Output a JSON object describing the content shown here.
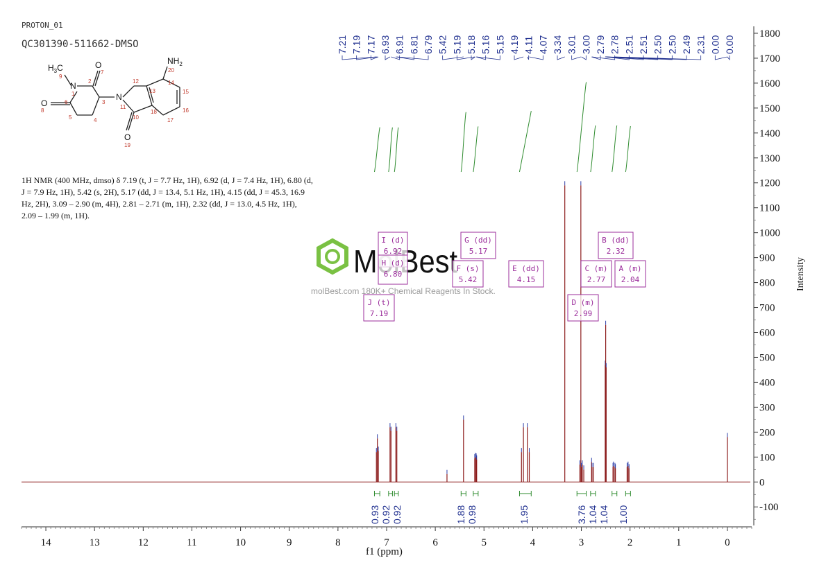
{
  "header": {
    "experiment": "PROTON_01",
    "sample": "QC301390-511662-DMSO"
  },
  "nmr_description": "1H NMR (400 MHz, dmso) δ 7.19 (t, J = 7.7 Hz, 1H), 6.92 (d, J = 7.4 Hz, 1H), 6.80 (d, J = 7.9 Hz, 1H), 5.42 (s, 2H), 5.17 (dd, J = 13.4, 5.1 Hz, 1H), 4.15 (dd, J = 45.3, 16.9 Hz, 2H), 3.09 – 2.90 (m, 4H), 2.81 – 2.71 (m, 1H), 2.32 (dd, J = 13.0, 4.5 Hz, 1H), 2.09 – 1.99 (m, 1H).",
  "watermark": {
    "brand": "MolBest",
    "tagline": "molBest.com  180K+ Chemical Reagents In Stock."
  },
  "structure": {
    "atoms": [
      "H3C",
      "9",
      "N",
      "1",
      "O",
      "7",
      "2",
      "3",
      "N",
      "11",
      "12",
      "13",
      "14",
      "20",
      "NH2",
      "15",
      "16",
      "17",
      "18",
      "10",
      "O",
      "19",
      "O",
      "8",
      "6",
      "5",
      "4"
    ]
  },
  "chart_data": {
    "type": "line",
    "xlabel": "f1 (ppm)",
    "ylabel": "Intensity",
    "xlim": [
      14.5,
      -0.5
    ],
    "ylim": [
      -180,
      1850
    ],
    "x_ticks": [
      14,
      13,
      12,
      11,
      10,
      9,
      8,
      7,
      6,
      5,
      4,
      3,
      2,
      1,
      0
    ],
    "y_ticks": [
      -100,
      0,
      100,
      200,
      300,
      400,
      500,
      600,
      700,
      800,
      900,
      1000,
      1100,
      1200,
      1300,
      1400,
      1500,
      1600,
      1700,
      1800
    ],
    "peaks": [
      {
        "ppm": 7.21,
        "height": 120
      },
      {
        "ppm": 7.19,
        "height": 175
      },
      {
        "ppm": 7.17,
        "height": 125
      },
      {
        "ppm": 6.93,
        "height": 220
      },
      {
        "ppm": 6.91,
        "height": 205
      },
      {
        "ppm": 6.81,
        "height": 220
      },
      {
        "ppm": 6.79,
        "height": 205
      },
      {
        "ppm": 5.76,
        "height": 32
      },
      {
        "ppm": 5.42,
        "height": 250
      },
      {
        "ppm": 5.19,
        "height": 95
      },
      {
        "ppm": 5.18,
        "height": 100
      },
      {
        "ppm": 5.16,
        "height": 98
      },
      {
        "ppm": 5.15,
        "height": 90
      },
      {
        "ppm": 4.23,
        "height": 120
      },
      {
        "ppm": 4.19,
        "height": 220
      },
      {
        "ppm": 4.11,
        "height": 220
      },
      {
        "ppm": 4.07,
        "height": 120
      },
      {
        "ppm": 3.34,
        "height": 1190
      },
      {
        "ppm": 3.03,
        "height": 70
      },
      {
        "ppm": 3.01,
        "height": 1190
      },
      {
        "ppm": 3.0,
        "height": 60
      },
      {
        "ppm": 2.98,
        "height": 70
      },
      {
        "ppm": 2.95,
        "height": 50
      },
      {
        "ppm": 2.79,
        "height": 80
      },
      {
        "ppm": 2.78,
        "height": 60
      },
      {
        "ppm": 2.75,
        "height": 60
      },
      {
        "ppm": 2.51,
        "height": 470
      },
      {
        "ppm": 2.5,
        "height": 630
      },
      {
        "ppm": 2.49,
        "height": 460
      },
      {
        "ppm": 2.35,
        "height": 60
      },
      {
        "ppm": 2.34,
        "height": 65
      },
      {
        "ppm": 2.31,
        "height": 60
      },
      {
        "ppm": 2.3,
        "height": 55
      },
      {
        "ppm": 2.06,
        "height": 60
      },
      {
        "ppm": 2.04,
        "height": 65
      },
      {
        "ppm": 2.02,
        "height": 55
      },
      {
        "ppm": 0.0,
        "height": 180
      }
    ],
    "top_labels": [
      "7.21",
      "7.19",
      "7.17",
      "6.93",
      "6.91",
      "6.81",
      "6.79",
      "5.42",
      "5.19",
      "5.18",
      "5.16",
      "5.15",
      "4.19",
      "4.11",
      "4.07",
      "3.34",
      "3.01",
      "3.00",
      "2.79",
      "2.78",
      "2.51",
      "2.51",
      "2.50",
      "2.50",
      "2.49",
      "2.31",
      "0.00",
      "0.00"
    ],
    "integrals": [
      {
        "from": 7.25,
        "to": 7.14,
        "value": "0.93"
      },
      {
        "from": 6.96,
        "to": 6.88,
        "value": "0.92"
      },
      {
        "from": 6.84,
        "to": 6.76,
        "value": "0.92"
      },
      {
        "from": 5.47,
        "to": 5.37,
        "value": "1.88"
      },
      {
        "from": 5.22,
        "to": 5.12,
        "value": "0.98"
      },
      {
        "from": 4.27,
        "to": 4.03,
        "value": "1.95"
      },
      {
        "from": 3.09,
        "to": 2.9,
        "value": "3.76"
      },
      {
        "from": 2.81,
        "to": 2.71,
        "value": "1.04"
      },
      {
        "from": 2.37,
        "to": 2.27,
        "value": "1.04"
      },
      {
        "from": 2.09,
        "to": 1.99,
        "value": "1.00"
      }
    ],
    "multiplets": [
      {
        "label": "I (d)",
        "shift": "6.92"
      },
      {
        "label": "H (d)",
        "shift": "6.80"
      },
      {
        "label": "J (t)",
        "shift": "7.19"
      },
      {
        "label": "G (dd)",
        "shift": "5.17"
      },
      {
        "label": "F (s)",
        "shift": "5.42"
      },
      {
        "label": "E (dd)",
        "shift": "4.15"
      },
      {
        "label": "D (m)",
        "shift": "2.99"
      },
      {
        "label": "C (m)",
        "shift": "2.77"
      },
      {
        "label": "B (dd)",
        "shift": "2.32"
      },
      {
        "label": "A (m)",
        "shift": "2.04"
      }
    ],
    "colors": {
      "spectrum": "#8b1a1a",
      "peak_label": "#1f2f8f",
      "integral": "#2e8b2e",
      "multiplet": "#9b2d9b",
      "structure_atom": "#c0392b",
      "watermark": "#7ac143"
    }
  }
}
